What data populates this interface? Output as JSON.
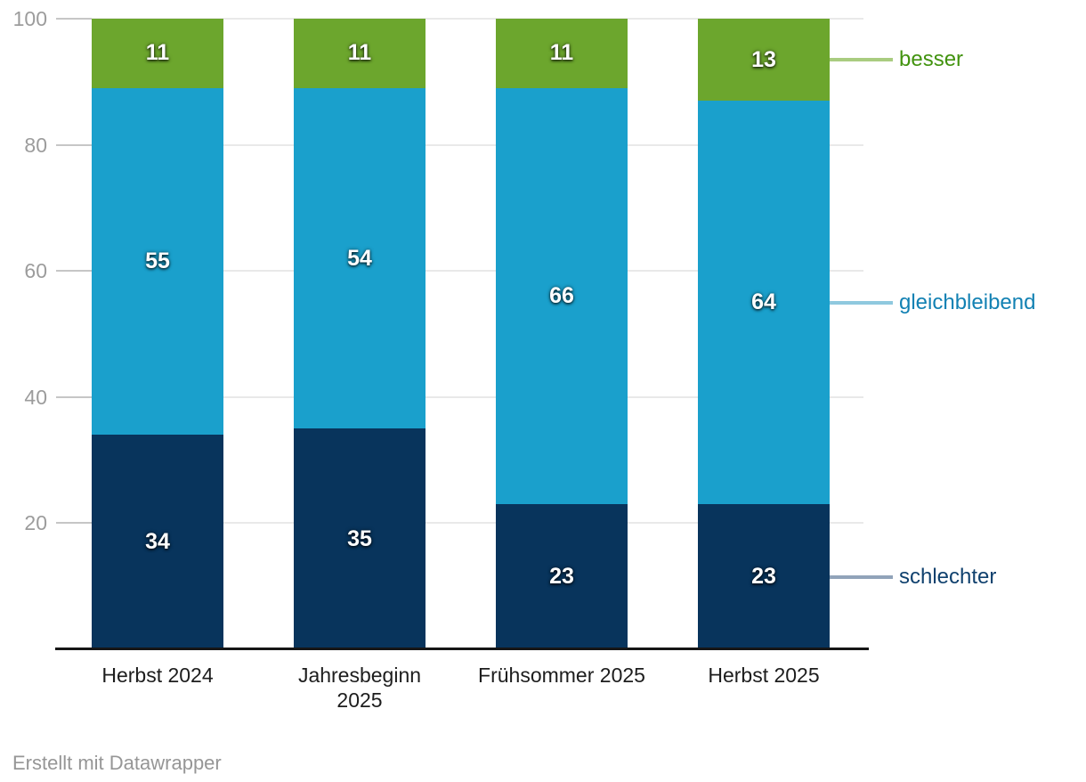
{
  "chart_data": {
    "type": "bar",
    "stacked": true,
    "orientation": "vertical",
    "categories": [
      "Herbst 2024",
      "Jahresbeginn\n2025",
      "Frühsommer 2025",
      "Herbst 2025"
    ],
    "series": [
      {
        "name": "schlechter",
        "values": [
          34,
          35,
          23,
          23
        ],
        "color": "#08345c",
        "label_color": "#10416e",
        "connector_color": "#91a3b9"
      },
      {
        "name": "gleichbleibend",
        "values": [
          55,
          54,
          66,
          64
        ],
        "color": "#1aa0cc",
        "label_color": "#1281b3",
        "connector_color": "#8fc9df"
      },
      {
        "name": "besser",
        "values": [
          11,
          11,
          11,
          13
        ],
        "color": "#6ca62d",
        "label_color": "#42930f",
        "connector_color": "#a9cc80"
      }
    ],
    "y_ticks": [
      20,
      40,
      60,
      80,
      100
    ],
    "ylim": [
      0,
      100
    ],
    "grid": true,
    "value_labels": true,
    "legend_position": "right"
  },
  "footer": {
    "attribution": "Erstellt mit Datawrapper"
  },
  "colors": {
    "background": "#ffffff",
    "axis_line": "#161616",
    "gridline": "#e9e9e9",
    "tick_stub": "#c6c6c6",
    "tick_label": "#9c9c9c",
    "category_label": "#1d1d1d",
    "value_label": "#ffffff",
    "attribution": "#969696"
  }
}
